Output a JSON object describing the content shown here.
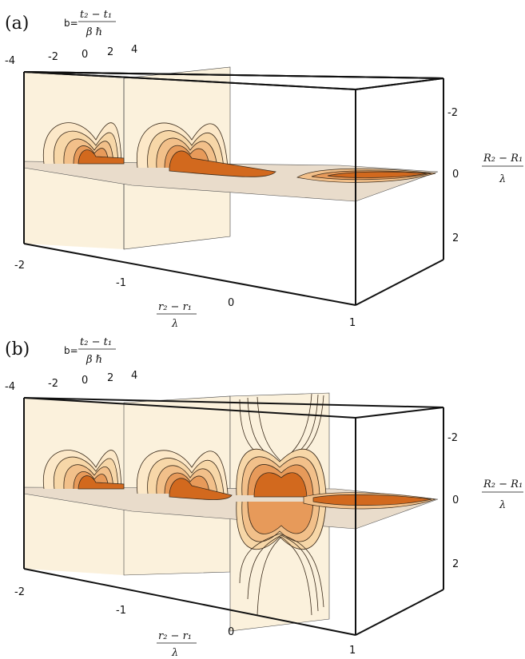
{
  "panels": [
    {
      "label": "(a)",
      "b_axis": {
        "prefix": "b=",
        "num": "t₂ − t₁",
        "den": "β ℏ",
        "ticks": [
          "-4",
          "-2",
          "0",
          "2",
          "4"
        ]
      },
      "x_axis": {
        "num": "r₂ − r₁",
        "den": "λ",
        "ticks": [
          "-2",
          "-1",
          "0",
          "1"
        ]
      },
      "y_axis": {
        "num": "R₂ − R₁",
        "den": "λ",
        "ticks": [
          "-2",
          "0",
          "2"
        ]
      }
    },
    {
      "label": "(b)",
      "b_axis": {
        "prefix": "b=",
        "num": "t₂ − t₁",
        "den": "β ℏ",
        "ticks": [
          "-4",
          "-2",
          "0",
          "2",
          "4"
        ]
      },
      "x_axis": {
        "num": "r₂ − r₁",
        "den": "λ",
        "ticks": [
          "-2",
          "-1",
          "0",
          "1"
        ]
      },
      "y_axis": {
        "num": "R₂ − R₁",
        "den": "λ",
        "ticks": [
          "-2",
          "0",
          "2"
        ]
      }
    }
  ],
  "colors": {
    "frame": "#111111",
    "slab": "#fbf1dc",
    "plane": "#e9dccb",
    "core": "#d2691e",
    "contour": "#3a2a1a",
    "mid": "#f2c08a"
  }
}
